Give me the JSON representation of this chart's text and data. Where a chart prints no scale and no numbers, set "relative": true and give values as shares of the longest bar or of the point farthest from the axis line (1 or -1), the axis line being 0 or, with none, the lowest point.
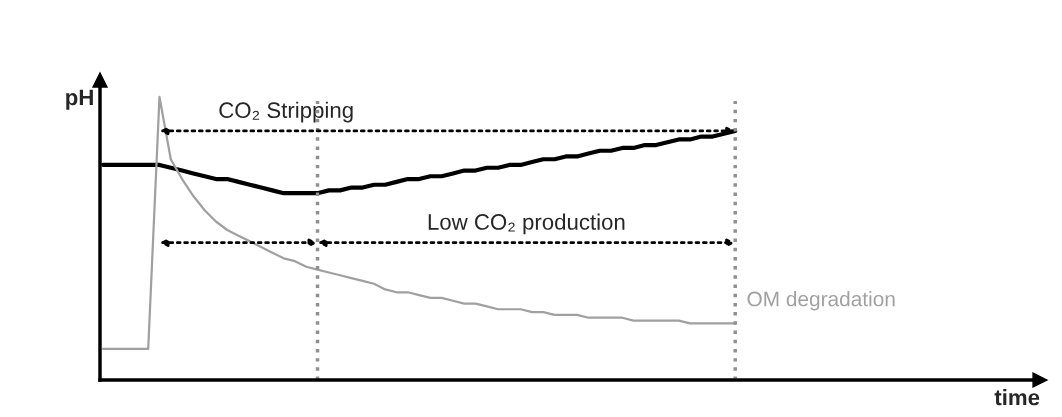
{
  "chart_data": {
    "type": "line",
    "relative": true,
    "xlabel": "time",
    "ylabel": "pH",
    "line_style": "solid",
    "marker": "none",
    "categories": [
      null,
      null,
      null,
      null,
      null,
      null,
      null,
      null,
      null,
      null,
      null,
      null,
      null,
      null,
      null,
      null,
      null,
      null,
      null,
      null,
      null,
      null,
      null,
      null,
      null,
      null,
      null,
      null,
      null,
      null,
      null,
      null,
      null,
      null,
      null,
      null,
      null,
      null,
      null,
      null,
      null,
      null,
      null,
      null,
      null,
      null,
      null,
      null,
      null,
      null,
      null,
      null,
      null,
      null,
      null,
      null,
      null,
      null,
      null,
      null,
      null,
      null,
      null,
      null,
      null,
      null,
      null,
      null,
      null,
      null,
      null,
      null,
      null,
      null,
      null,
      null,
      null,
      null,
      null,
      null,
      null,
      null,
      null,
      null
    ],
    "series": [
      {
        "color": "#000000",
        "values": [
          0.76,
          0.76,
          0.76,
          0.76,
          0.76,
          0.76,
          0.75,
          0.74,
          0.73,
          0.72,
          0.71,
          0.71,
          0.7,
          0.69,
          0.68,
          0.67,
          0.66,
          0.66,
          0.66,
          0.66,
          0.67,
          0.67,
          0.68,
          0.68,
          0.69,
          0.69,
          0.7,
          0.71,
          0.71,
          0.72,
          0.72,
          0.73,
          0.74,
          0.74,
          0.75,
          0.75,
          0.76,
          0.76,
          0.77,
          0.78,
          0.78,
          0.79,
          0.79,
          0.8,
          0.81,
          0.81,
          0.82,
          0.82,
          0.83,
          0.83,
          0.84,
          0.85,
          0.85,
          0.86,
          0.86,
          0.87,
          0.88,
          null,
          null,
          null,
          null,
          null,
          null,
          null,
          null,
          null,
          null,
          null,
          null,
          null,
          null,
          null,
          null,
          null,
          null,
          null,
          null,
          null,
          null,
          null,
          null,
          null,
          null,
          null
        ]
      },
      {
        "name": "OM degradation",
        "color": "#a0a0a0",
        "values": [
          0.11,
          0.11,
          0.11,
          0.11,
          0.11,
          1.0,
          0.78,
          0.71,
          0.65,
          0.6,
          0.56,
          0.53,
          0.51,
          0.49,
          0.47,
          0.45,
          0.43,
          0.42,
          0.4,
          0.39,
          0.38,
          0.37,
          0.36,
          0.35,
          0.34,
          0.32,
          0.31,
          0.31,
          0.3,
          0.29,
          0.29,
          0.28,
          0.27,
          0.27,
          0.26,
          0.25,
          0.25,
          0.25,
          0.24,
          0.24,
          0.23,
          0.23,
          0.23,
          0.22,
          0.22,
          0.22,
          0.22,
          0.21,
          0.21,
          0.21,
          0.21,
          0.21,
          0.2,
          0.2,
          0.2,
          0.2,
          0.2,
          null,
          null,
          null,
          null,
          null,
          null,
          null,
          null,
          null,
          null,
          null,
          null,
          null,
          null,
          null,
          null,
          null,
          null,
          null,
          null,
          null,
          null,
          null,
          null,
          null,
          null,
          null
        ]
      }
    ],
    "annotations": [
      "CO₂ Stripping",
      "Low CO₂ production"
    ]
  }
}
